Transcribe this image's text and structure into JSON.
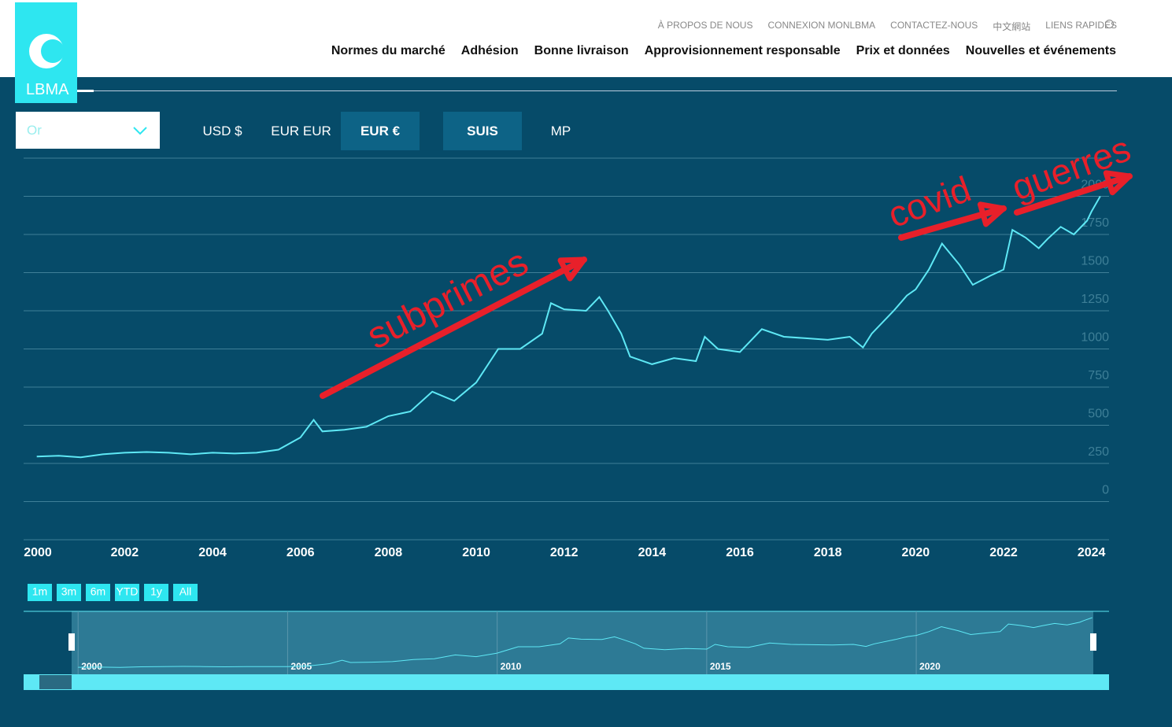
{
  "header": {
    "logo": "LBMA",
    "top_links": [
      "À PROPOS DE NOUS",
      "CONNEXION MONLBMA",
      "CONTACTEZ-NOUS",
      "中文網站",
      "LIENS RAPIDES"
    ],
    "main_nav": [
      "Normes du marché",
      "Adhésion",
      "Bonne livraison",
      "Approvisionnement responsable",
      "Prix et données",
      "Nouvelles et événements"
    ]
  },
  "controls": {
    "metal": "Or",
    "options": [
      "USD $",
      "EUR EUR",
      "EUR €",
      "SUIS",
      "MP"
    ]
  },
  "chart_data": {
    "type": "line",
    "x": [
      2000,
      2000.5,
      2001,
      2001.5,
      2002,
      2002.5,
      2003,
      2003.5,
      2004,
      2004.5,
      2005,
      2005.5,
      2006,
      2006.3,
      2006.5,
      2007,
      2007.5,
      2008,
      2008.5,
      2009,
      2009.5,
      2010,
      2010.5,
      2011,
      2011.5,
      2011.7,
      2012,
      2012.5,
      2012.8,
      2013,
      2013.3,
      2013.5,
      2014,
      2014.5,
      2015,
      2015.2,
      2015.5,
      2016,
      2016.5,
      2017,
      2017.5,
      2018,
      2018.5,
      2018.8,
      2019,
      2019.5,
      2019.8,
      2020,
      2020.3,
      2020.6,
      2021,
      2021.3,
      2021.7,
      2022,
      2022.2,
      2022.5,
      2022.8,
      2023,
      2023.3,
      2023.6,
      2023.9,
      2024,
      2024.2
    ],
    "series": [
      {
        "color": "#5ee8f5",
        "values": [
          295,
          300,
          290,
          310,
          320,
          325,
          320,
          310,
          320,
          315,
          320,
          340,
          420,
          535,
          460,
          470,
          490,
          560,
          590,
          720,
          660,
          780,
          1000,
          1000,
          1100,
          1300,
          1260,
          1250,
          1340,
          1250,
          1100,
          950,
          900,
          940,
          920,
          1080,
          1000,
          980,
          1130,
          1080,
          1070,
          1060,
          1080,
          1010,
          1100,
          1250,
          1350,
          1390,
          1520,
          1690,
          1550,
          1420,
          1480,
          1520,
          1780,
          1730,
          1660,
          1720,
          1800,
          1750,
          1840,
          1900,
          2000
        ]
      }
    ],
    "xlim": [
      1999.7,
      2024.4
    ],
    "xticks": [
      2000,
      2002,
      2004,
      2006,
      2008,
      2010,
      2012,
      2014,
      2016,
      2018,
      2020,
      2022,
      2024
    ],
    "ylim": [
      -250,
      2250
    ],
    "yticks": [
      0,
      250,
      500,
      750,
      1000,
      1250,
      1500,
      1750,
      2000
    ],
    "grid": true,
    "annotations": [
      "subprimes",
      "covid",
      "guerres"
    ]
  },
  "navigator": {
    "range_buttons": [
      "1m",
      "3m",
      "6m",
      "YTD",
      "1y",
      "All"
    ],
    "xlim": [
      1998.7,
      2024.6
    ],
    "xticks": [
      2000,
      2005,
      2010,
      2015,
      2020
    ]
  }
}
